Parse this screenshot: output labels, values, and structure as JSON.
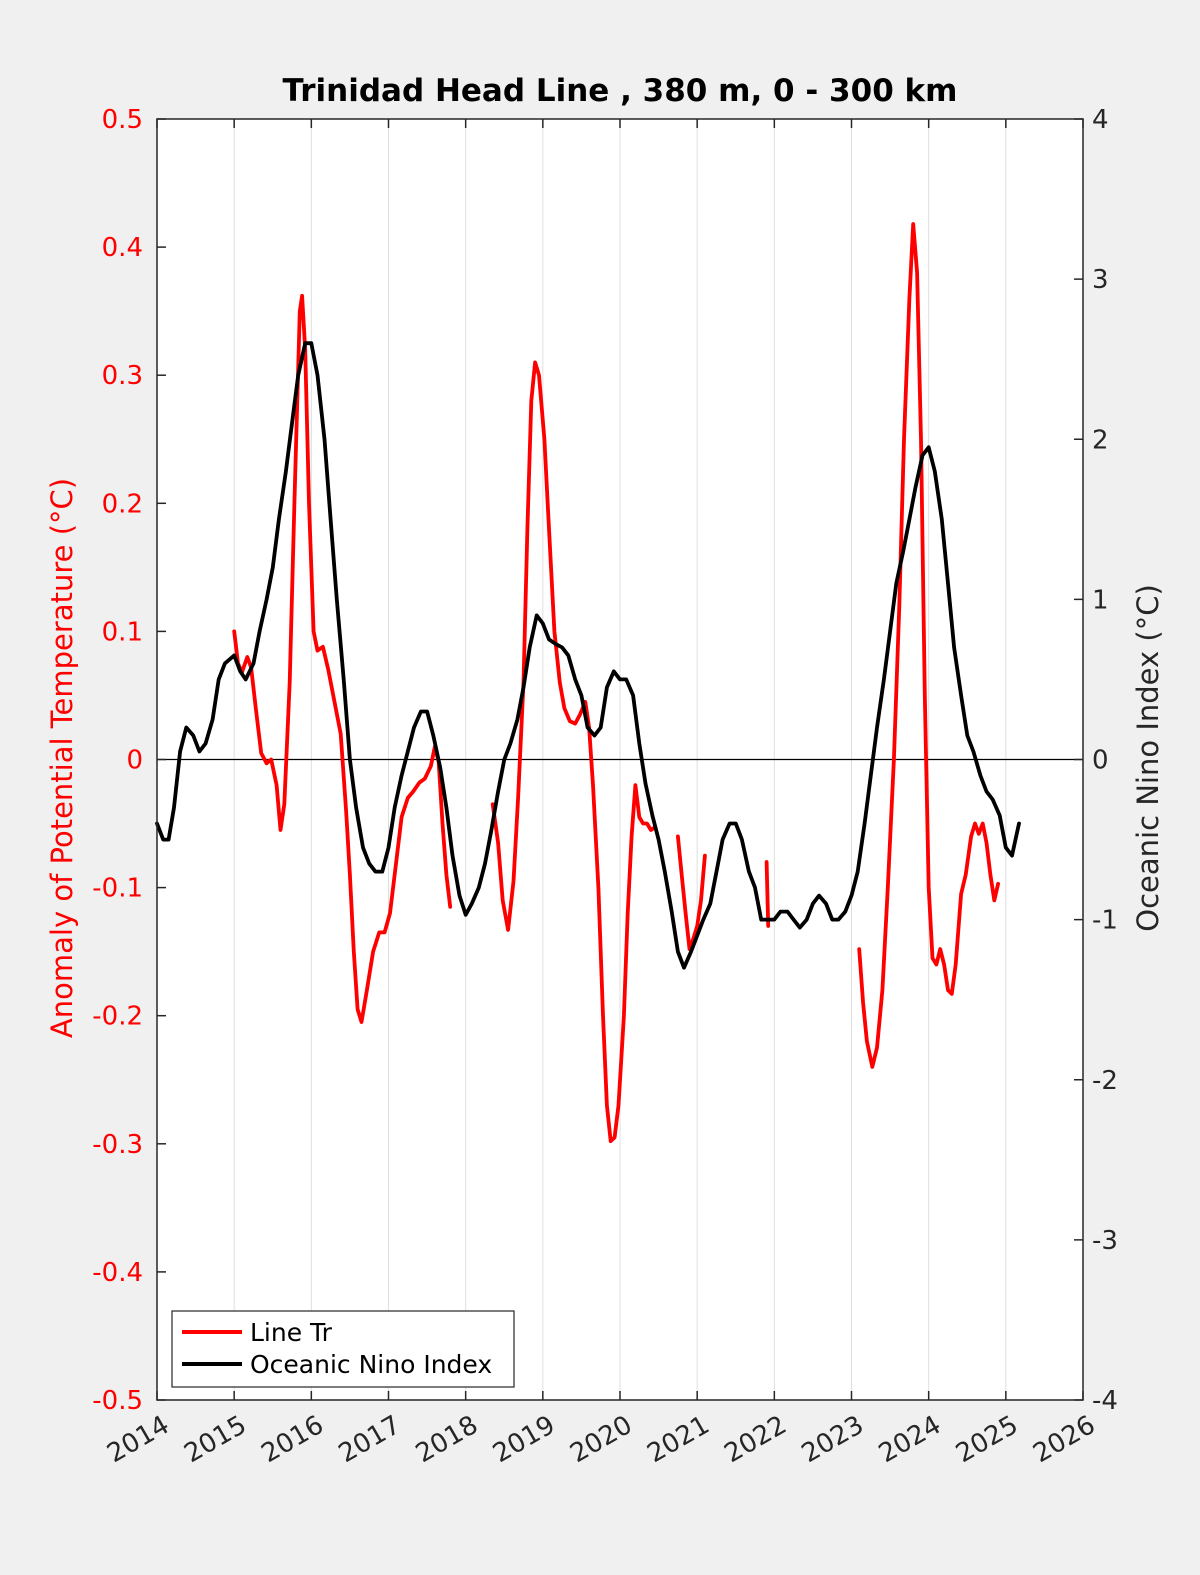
{
  "chart_data": {
    "type": "line",
    "title": "Trinidad Head Line , 380 m, 0 - 300 km",
    "xlabel": "",
    "ylabel_left": "Anomaly of Potential Temperature (°C)",
    "ylabel_right": "Oceanic Nino Index (°C)",
    "xlim": [
      2014,
      2026
    ],
    "ylim_left": [
      -0.5,
      0.5
    ],
    "ylim_right": [
      -4,
      4
    ],
    "x_ticks": [
      2014,
      2015,
      2016,
      2017,
      2018,
      2019,
      2020,
      2021,
      2022,
      2023,
      2024,
      2025,
      2026
    ],
    "y_ticks_left": [
      "-0.5",
      "-0.4",
      "-0.3",
      "-0.2",
      "-0.1",
      "0",
      "0.1",
      "0.2",
      "0.3",
      "0.4",
      "0.5"
    ],
    "y_ticks_right": [
      "-4",
      "-3",
      "-2",
      "-1",
      "0",
      "1",
      "2",
      "3",
      "4"
    ],
    "grid": "vertical",
    "zero_line": true,
    "legend_position": "bottom-left",
    "colors": {
      "left_axis": "#ff0000",
      "line_tr": "#ff0000",
      "oni": "#000000"
    },
    "series": [
      {
        "name": "Line Tr",
        "axis": "left",
        "segments": [
          [
            [
              2015.0,
              0.1
            ],
            [
              2015.05,
              0.075
            ],
            [
              2015.1,
              0.068
            ],
            [
              2015.17,
              0.08
            ],
            [
              2015.22,
              0.072
            ],
            [
              2015.28,
              0.04
            ],
            [
              2015.35,
              0.005
            ],
            [
              2015.42,
              -0.003
            ],
            [
              2015.48,
              0.0
            ],
            [
              2015.55,
              -0.02
            ],
            [
              2015.6,
              -0.055
            ],
            [
              2015.65,
              -0.035
            ],
            [
              2015.72,
              0.06
            ],
            [
              2015.78,
              0.2
            ],
            [
              2015.85,
              0.35
            ],
            [
              2015.88,
              0.362
            ],
            [
              2015.92,
              0.32
            ],
            [
              2015.97,
              0.2
            ],
            [
              2016.03,
              0.1
            ],
            [
              2016.08,
              0.085
            ],
            [
              2016.15,
              0.088
            ],
            [
              2016.22,
              0.07
            ],
            [
              2016.3,
              0.045
            ],
            [
              2016.38,
              0.02
            ],
            [
              2016.45,
              -0.04
            ],
            [
              2016.5,
              -0.09
            ],
            [
              2016.55,
              -0.15
            ],
            [
              2016.6,
              -0.195
            ],
            [
              2016.65,
              -0.205
            ],
            [
              2016.72,
              -0.18
            ],
            [
              2016.8,
              -0.15
            ],
            [
              2016.88,
              -0.135
            ],
            [
              2016.95,
              -0.135
            ],
            [
              2017.02,
              -0.12
            ],
            [
              2017.1,
              -0.08
            ],
            [
              2017.17,
              -0.045
            ],
            [
              2017.25,
              -0.03
            ],
            [
              2017.32,
              -0.025
            ],
            [
              2017.4,
              -0.018
            ],
            [
              2017.47,
              -0.015
            ],
            [
              2017.55,
              -0.005
            ],
            [
              2017.6,
              0.01
            ],
            [
              2017.65,
              -0.002
            ],
            [
              2017.7,
              -0.05
            ],
            [
              2017.75,
              -0.09
            ],
            [
              2017.8,
              -0.115
            ]
          ],
          [
            [
              2018.35,
              -0.035
            ],
            [
              2018.42,
              -0.065
            ],
            [
              2018.48,
              -0.11
            ],
            [
              2018.55,
              -0.133
            ],
            [
              2018.62,
              -0.095
            ],
            [
              2018.68,
              -0.03
            ],
            [
              2018.75,
              0.06
            ],
            [
              2018.8,
              0.18
            ],
            [
              2018.85,
              0.28
            ],
            [
              2018.9,
              0.31
            ],
            [
              2018.95,
              0.3
            ],
            [
              2019.02,
              0.25
            ],
            [
              2019.08,
              0.18
            ],
            [
              2019.15,
              0.1
            ],
            [
              2019.22,
              0.06
            ],
            [
              2019.28,
              0.04
            ],
            [
              2019.35,
              0.03
            ],
            [
              2019.42,
              0.028
            ],
            [
              2019.48,
              0.035
            ],
            [
              2019.55,
              0.045
            ],
            [
              2019.6,
              0.025
            ],
            [
              2019.65,
              -0.02
            ],
            [
              2019.72,
              -0.1
            ],
            [
              2019.78,
              -0.2
            ],
            [
              2019.83,
              -0.27
            ],
            [
              2019.88,
              -0.298
            ],
            [
              2019.93,
              -0.295
            ],
            [
              2019.98,
              -0.27
            ],
            [
              2020.05,
              -0.2
            ],
            [
              2020.1,
              -0.12
            ],
            [
              2020.15,
              -0.06
            ],
            [
              2020.2,
              -0.02
            ],
            [
              2020.25,
              -0.045
            ],
            [
              2020.3,
              -0.05
            ],
            [
              2020.35,
              -0.05
            ],
            [
              2020.4,
              -0.055
            ],
            [
              2020.45,
              -0.053
            ]
          ],
          [
            [
              2020.75,
              -0.06
            ],
            [
              2020.8,
              -0.09
            ],
            [
              2020.85,
              -0.12
            ],
            [
              2020.9,
              -0.148
            ],
            [
              2020.95,
              -0.14
            ],
            [
              2021.0,
              -0.13
            ],
            [
              2021.05,
              -0.11
            ],
            [
              2021.1,
              -0.075
            ]
          ],
          [
            [
              2021.9,
              -0.08
            ],
            [
              2021.92,
              -0.13
            ]
          ],
          [
            [
              2023.1,
              -0.148
            ],
            [
              2023.15,
              -0.19
            ],
            [
              2023.2,
              -0.22
            ],
            [
              2023.27,
              -0.24
            ],
            [
              2023.33,
              -0.225
            ],
            [
              2023.4,
              -0.18
            ],
            [
              2023.47,
              -0.1
            ],
            [
              2023.55,
              0.0
            ],
            [
              2023.62,
              0.12
            ],
            [
              2023.68,
              0.25
            ],
            [
              2023.75,
              0.36
            ],
            [
              2023.8,
              0.418
            ],
            [
              2023.85,
              0.38
            ],
            [
              2023.9,
              0.25
            ],
            [
              2023.95,
              0.05
            ],
            [
              2024.0,
              -0.1
            ],
            [
              2024.05,
              -0.155
            ],
            [
              2024.1,
              -0.16
            ],
            [
              2024.15,
              -0.148
            ],
            [
              2024.2,
              -0.16
            ],
            [
              2024.25,
              -0.18
            ],
            [
              2024.3,
              -0.183
            ],
            [
              2024.35,
              -0.16
            ],
            [
              2024.42,
              -0.105
            ],
            [
              2024.48,
              -0.09
            ],
            [
              2024.55,
              -0.06
            ],
            [
              2024.6,
              -0.05
            ],
            [
              2024.65,
              -0.058
            ],
            [
              2024.7,
              -0.05
            ],
            [
              2024.75,
              -0.065
            ],
            [
              2024.8,
              -0.09
            ],
            [
              2024.85,
              -0.11
            ],
            [
              2024.9,
              -0.097
            ]
          ]
        ]
      },
      {
        "name": "Oceanic Nino Index",
        "axis": "right",
        "points": [
          [
            2014.0,
            -0.4
          ],
          [
            2014.08,
            -0.5
          ],
          [
            2014.15,
            -0.5
          ],
          [
            2014.22,
            -0.3
          ],
          [
            2014.3,
            0.05
          ],
          [
            2014.38,
            0.2
          ],
          [
            2014.47,
            0.15
          ],
          [
            2014.55,
            0.05
          ],
          [
            2014.63,
            0.1
          ],
          [
            2014.72,
            0.25
          ],
          [
            2014.8,
            0.5
          ],
          [
            2014.88,
            0.6
          ],
          [
            2015.0,
            0.65
          ],
          [
            2015.08,
            0.55
          ],
          [
            2015.15,
            0.5
          ],
          [
            2015.25,
            0.6
          ],
          [
            2015.33,
            0.8
          ],
          [
            2015.42,
            1.0
          ],
          [
            2015.5,
            1.2
          ],
          [
            2015.58,
            1.5
          ],
          [
            2015.67,
            1.8
          ],
          [
            2015.75,
            2.1
          ],
          [
            2015.83,
            2.4
          ],
          [
            2015.92,
            2.6
          ],
          [
            2016.0,
            2.6
          ],
          [
            2016.08,
            2.4
          ],
          [
            2016.17,
            2.0
          ],
          [
            2016.25,
            1.5
          ],
          [
            2016.33,
            1.0
          ],
          [
            2016.42,
            0.5
          ],
          [
            2016.5,
            0.0
          ],
          [
            2016.58,
            -0.3
          ],
          [
            2016.67,
            -0.55
          ],
          [
            2016.75,
            -0.65
          ],
          [
            2016.83,
            -0.7
          ],
          [
            2016.92,
            -0.7
          ],
          [
            2017.0,
            -0.55
          ],
          [
            2017.08,
            -0.3
          ],
          [
            2017.17,
            -0.1
          ],
          [
            2017.25,
            0.05
          ],
          [
            2017.33,
            0.2
          ],
          [
            2017.42,
            0.3
          ],
          [
            2017.5,
            0.3
          ],
          [
            2017.58,
            0.15
          ],
          [
            2017.67,
            -0.05
          ],
          [
            2017.75,
            -0.3
          ],
          [
            2017.83,
            -0.6
          ],
          [
            2017.92,
            -0.85
          ],
          [
            2018.0,
            -0.97
          ],
          [
            2018.08,
            -0.9
          ],
          [
            2018.17,
            -0.8
          ],
          [
            2018.25,
            -0.65
          ],
          [
            2018.33,
            -0.45
          ],
          [
            2018.42,
            -0.2
          ],
          [
            2018.5,
            0.0
          ],
          [
            2018.58,
            0.1
          ],
          [
            2018.67,
            0.25
          ],
          [
            2018.75,
            0.45
          ],
          [
            2018.83,
            0.7
          ],
          [
            2018.92,
            0.9
          ],
          [
            2019.0,
            0.85
          ],
          [
            2019.08,
            0.75
          ],
          [
            2019.17,
            0.72
          ],
          [
            2019.25,
            0.7
          ],
          [
            2019.33,
            0.65
          ],
          [
            2019.42,
            0.5
          ],
          [
            2019.5,
            0.4
          ],
          [
            2019.58,
            0.2
          ],
          [
            2019.67,
            0.15
          ],
          [
            2019.75,
            0.2
          ],
          [
            2019.83,
            0.45
          ],
          [
            2019.92,
            0.55
          ],
          [
            2020.0,
            0.5
          ],
          [
            2020.08,
            0.5
          ],
          [
            2020.17,
            0.4
          ],
          [
            2020.25,
            0.1
          ],
          [
            2020.33,
            -0.15
          ],
          [
            2020.42,
            -0.35
          ],
          [
            2020.5,
            -0.5
          ],
          [
            2020.58,
            -0.7
          ],
          [
            2020.67,
            -0.95
          ],
          [
            2020.75,
            -1.2
          ],
          [
            2020.83,
            -1.3
          ],
          [
            2020.92,
            -1.2
          ],
          [
            2021.0,
            -1.1
          ],
          [
            2021.08,
            -1.0
          ],
          [
            2021.17,
            -0.9
          ],
          [
            2021.25,
            -0.7
          ],
          [
            2021.33,
            -0.5
          ],
          [
            2021.42,
            -0.4
          ],
          [
            2021.5,
            -0.4
          ],
          [
            2021.58,
            -0.5
          ],
          [
            2021.67,
            -0.7
          ],
          [
            2021.75,
            -0.8
          ],
          [
            2021.83,
            -1.0
          ],
          [
            2021.92,
            -1.0
          ],
          [
            2022.0,
            -1.0
          ],
          [
            2022.08,
            -0.95
          ],
          [
            2022.17,
            -0.95
          ],
          [
            2022.25,
            -1.0
          ],
          [
            2022.33,
            -1.05
          ],
          [
            2022.42,
            -1.0
          ],
          [
            2022.5,
            -0.9
          ],
          [
            2022.58,
            -0.85
          ],
          [
            2022.67,
            -0.9
          ],
          [
            2022.75,
            -1.0
          ],
          [
            2022.83,
            -1.0
          ],
          [
            2022.92,
            -0.95
          ],
          [
            2023.0,
            -0.85
          ],
          [
            2023.08,
            -0.7
          ],
          [
            2023.17,
            -0.4
          ],
          [
            2023.25,
            -0.1
          ],
          [
            2023.33,
            0.2
          ],
          [
            2023.42,
            0.5
          ],
          [
            2023.5,
            0.8
          ],
          [
            2023.58,
            1.1
          ],
          [
            2023.67,
            1.3
          ],
          [
            2023.75,
            1.5
          ],
          [
            2023.83,
            1.7
          ],
          [
            2023.92,
            1.9
          ],
          [
            2024.0,
            1.95
          ],
          [
            2024.08,
            1.8
          ],
          [
            2024.17,
            1.5
          ],
          [
            2024.25,
            1.1
          ],
          [
            2024.33,
            0.7
          ],
          [
            2024.42,
            0.4
          ],
          [
            2024.5,
            0.15
          ],
          [
            2024.58,
            0.05
          ],
          [
            2024.67,
            -0.1
          ],
          [
            2024.75,
            -0.2
          ],
          [
            2024.83,
            -0.25
          ],
          [
            2024.92,
            -0.35
          ],
          [
            2025.0,
            -0.55
          ],
          [
            2025.08,
            -0.6
          ],
          [
            2025.17,
            -0.4
          ]
        ]
      }
    ]
  }
}
